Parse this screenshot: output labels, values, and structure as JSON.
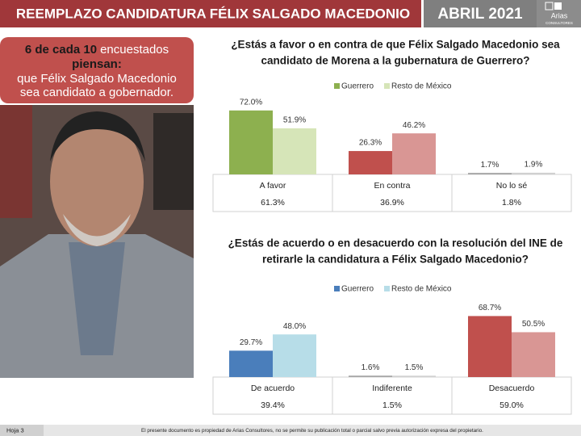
{
  "header": {
    "title": "REEMPLAZO CANDIDATURA FÉLIX SALGADO MACEDONIO",
    "date": "ABRIL 2021",
    "logo": "Arias",
    "logo_sub": "CONSULTORES"
  },
  "callout": {
    "bold": "6 de cada 10",
    "text": "encuestados",
    "bold2": "piensan:",
    "lines": [
      "que Félix Salgado Macedonio",
      "sea candidato a gobernador."
    ]
  },
  "chart_data": [
    {
      "type": "bar",
      "title": [
        "¿Estás a favor o en contra de que Félix Salgado Macedonio sea",
        "candidato de Morena a la gubernatura de Guerrero?"
      ],
      "categories": [
        "A favor",
        "En contra",
        "No lo sé"
      ],
      "series": [
        {
          "name": "Guerrero",
          "color": "#8db04f",
          "bar_colors": [
            "#8db04f",
            "#c0504d",
            "#a6a6a6"
          ],
          "values": [
            72.0,
            26.3,
            1.7
          ],
          "value_labels": [
            "72.0%",
            "26.3%",
            "1.7%"
          ]
        },
        {
          "name": "Resto de México",
          "color": "#d6e5b8",
          "bar_colors": [
            "#d6e5b8",
            "#d99694",
            "#d0d0d0"
          ],
          "values": [
            51.9,
            46.2,
            1.9
          ],
          "value_labels": [
            "51.9%",
            "46.2%",
            "1.9%"
          ]
        }
      ],
      "totals": [
        61.3,
        36.9,
        1.8
      ],
      "totals_labels": [
        "61.3%",
        "36.9%",
        "1.8%"
      ]
    },
    {
      "type": "bar",
      "title": [
        "¿Estás de acuerdo o en desacuerdo con la resolución del INE de",
        "retirarle la candidatura a Félix Salgado Macedonio?"
      ],
      "categories": [
        "De acuerdo",
        "Indiferente",
        "Desacuerdo"
      ],
      "series": [
        {
          "name": "Guerrero",
          "color": "#4a7ebb",
          "bar_colors": [
            "#4a7ebb",
            "#a6a6a6",
            "#c0504d"
          ],
          "values": [
            29.7,
            1.6,
            68.7
          ],
          "value_labels": [
            "29.7%",
            "1.6%",
            "68.7%"
          ]
        },
        {
          "name": "Resto de México",
          "color": "#b7dde8",
          "bar_colors": [
            "#b7dde8",
            "#d0d0d0",
            "#d99694"
          ],
          "values": [
            48.0,
            1.5,
            50.5
          ],
          "value_labels": [
            "48.0%",
            "1.5%",
            "50.5%"
          ]
        }
      ],
      "totals": [
        39.4,
        1.5,
        59.0
      ],
      "totals_labels": [
        "39.4%",
        "1.5%",
        "59.0%"
      ]
    }
  ],
  "footer": {
    "page": "Hoja 3",
    "note": "El presente documento es propiedad de Arias Consultores, no se permite su publicación total o parcial salvo previa autorización expresa del propietario."
  }
}
